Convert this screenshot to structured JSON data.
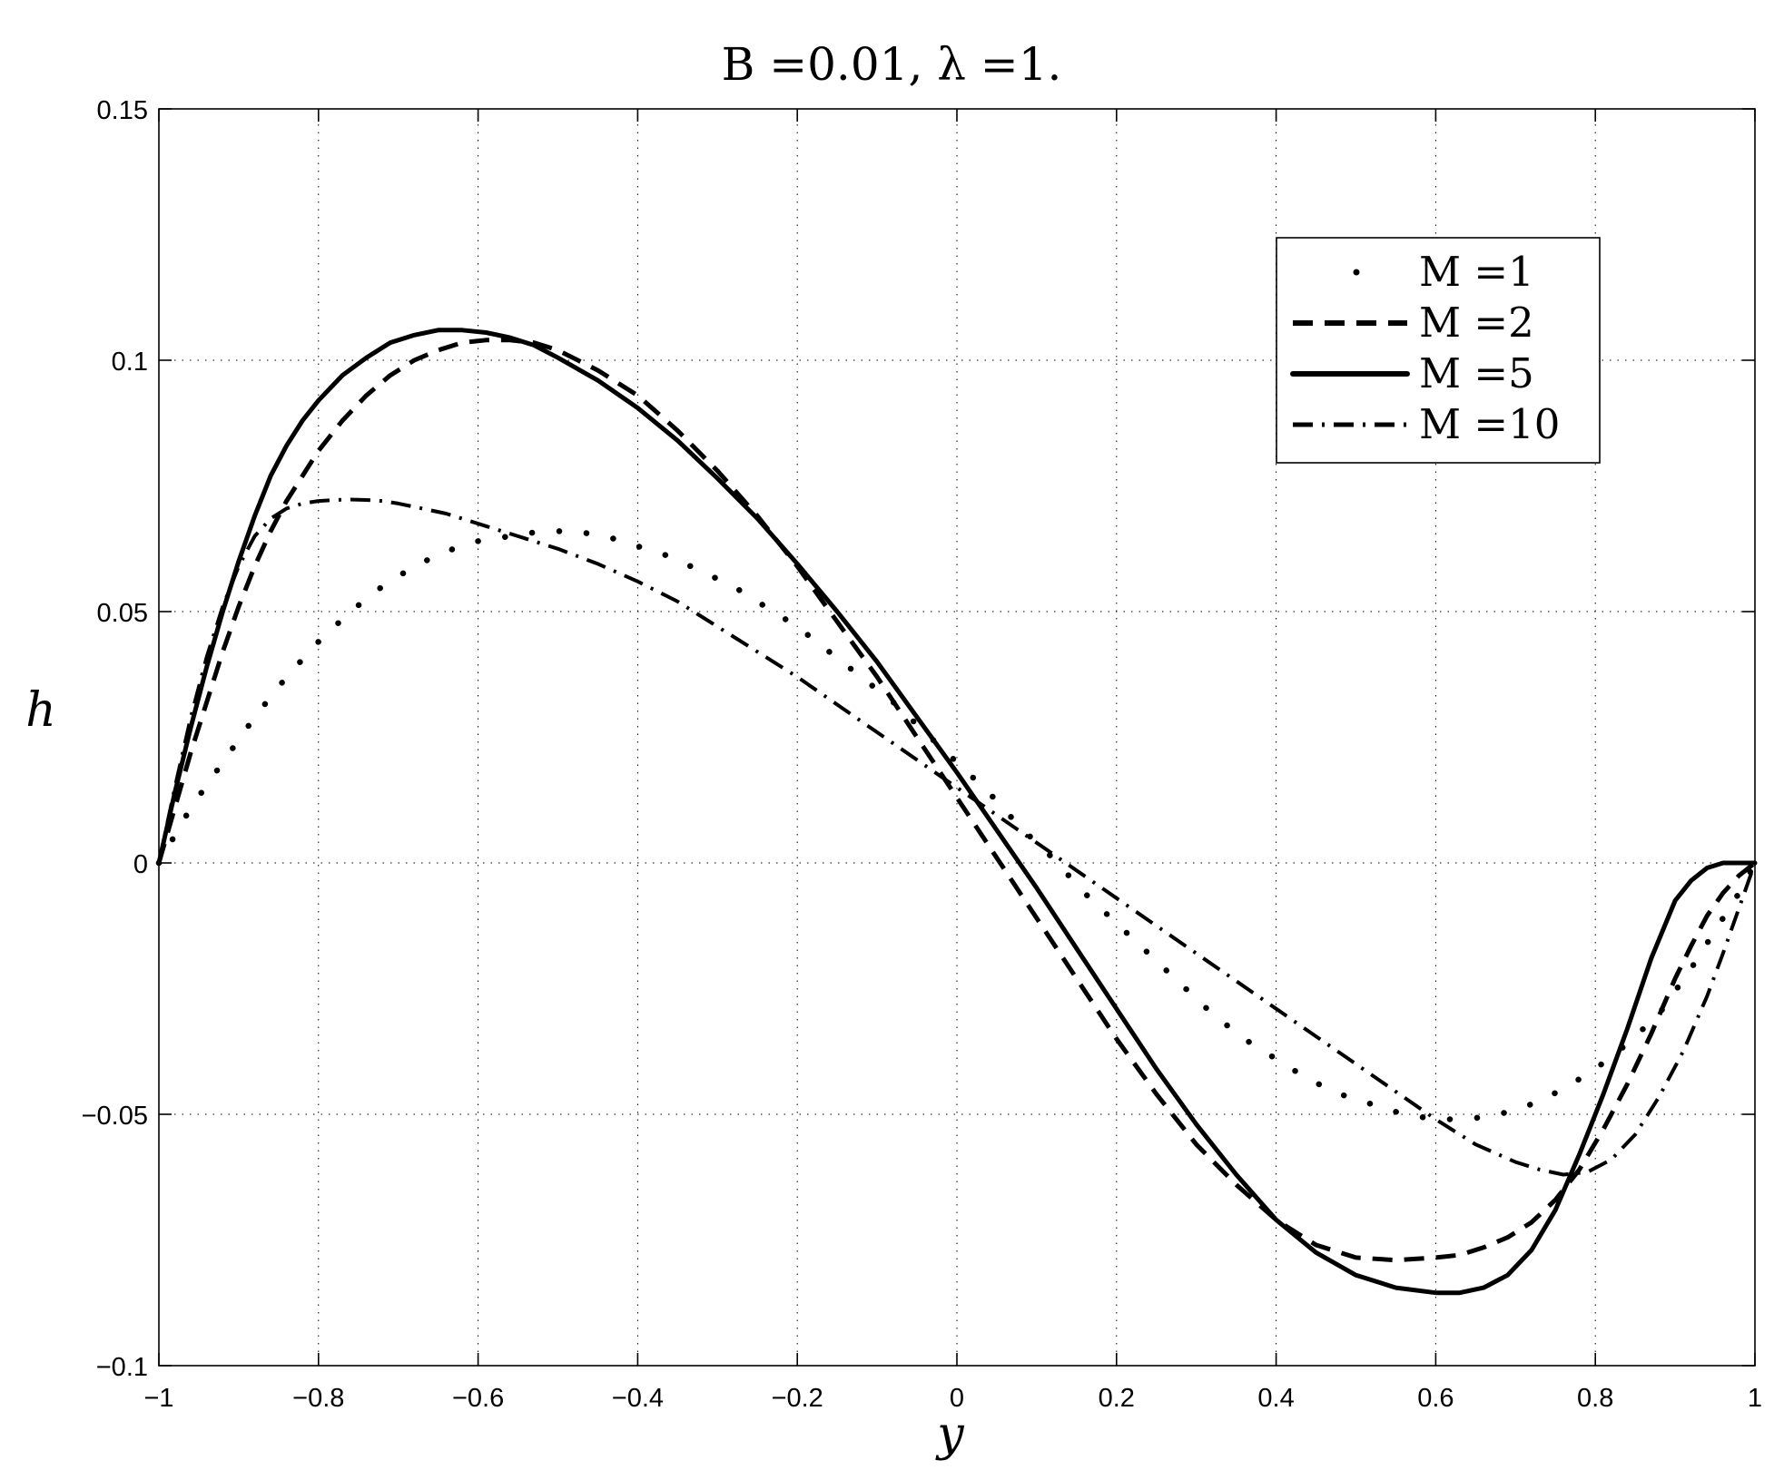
{
  "chart_data": {
    "type": "line",
    "title": "B =0.01, λ =1.",
    "xlabel": "y",
    "ylabel": "h",
    "xlim": [
      -1,
      1
    ],
    "ylim": [
      -0.1,
      0.15
    ],
    "xticks": [
      -1,
      -0.8,
      -0.6,
      -0.4,
      -0.2,
      0,
      0.2,
      0.4,
      0.6,
      0.8,
      1
    ],
    "xtick_labels": [
      "−1",
      "−0.8",
      "−0.6",
      "−0.4",
      "−0.2",
      "0",
      "0.2",
      "0.4",
      "0.6",
      "0.8",
      "1"
    ],
    "yticks": [
      -0.1,
      -0.05,
      0,
      0.05,
      0.1,
      0.15
    ],
    "ytick_labels": [
      "−0.1",
      "−0.05",
      "0",
      "0.05",
      "0.1",
      "0.15"
    ],
    "grid": true,
    "legend_position": "top-right",
    "series": [
      {
        "name": "M =1",
        "style": "dotted",
        "x": [
          -1,
          -0.96,
          -0.92,
          -0.88,
          -0.84,
          -0.8,
          -0.76,
          -0.72,
          -0.68,
          -0.64,
          -0.6,
          -0.56,
          -0.52,
          -0.48,
          -0.44,
          -0.4,
          -0.36,
          -0.32,
          -0.28,
          -0.24,
          -0.2,
          -0.16,
          -0.12,
          -0.08,
          -0.04,
          0,
          0.04,
          0.08,
          0.12,
          0.16,
          0.2,
          0.24,
          0.28,
          0.32,
          0.36,
          0.4,
          0.44,
          0.48,
          0.52,
          0.56,
          0.6,
          0.64,
          0.68,
          0.72,
          0.76,
          0.8,
          0.84,
          0.88,
          0.92,
          0.96,
          0.98,
          1
        ],
        "y": [
          0,
          0.011,
          0.02,
          0.029,
          0.037,
          0.044,
          0.05,
          0.055,
          0.059,
          0.062,
          0.064,
          0.065,
          0.066,
          0.066,
          0.065,
          0.063,
          0.061,
          0.058,
          0.055,
          0.051,
          0.047,
          0.042,
          0.037,
          0.032,
          0.026,
          0.02,
          0.014,
          0.007,
          0.001,
          -0.006,
          -0.012,
          -0.018,
          -0.024,
          -0.03,
          -0.035,
          -0.039,
          -0.043,
          -0.046,
          -0.048,
          -0.05,
          -0.051,
          -0.051,
          -0.05,
          -0.048,
          -0.045,
          -0.041,
          -0.036,
          -0.03,
          -0.021,
          -0.011,
          -0.006,
          0
        ]
      },
      {
        "name": "M =2",
        "style": "dashed",
        "x": [
          -1,
          -0.98,
          -0.96,
          -0.94,
          -0.92,
          -0.9,
          -0.88,
          -0.86,
          -0.84,
          -0.82,
          -0.8,
          -0.77,
          -0.74,
          -0.71,
          -0.68,
          -0.65,
          -0.62,
          -0.59,
          -0.56,
          -0.53,
          -0.5,
          -0.45,
          -0.4,
          -0.35,
          -0.3,
          -0.25,
          -0.2,
          -0.15,
          -0.1,
          -0.05,
          0,
          0.05,
          0.1,
          0.15,
          0.2,
          0.25,
          0.3,
          0.35,
          0.4,
          0.45,
          0.5,
          0.55,
          0.6,
          0.63,
          0.66,
          0.69,
          0.72,
          0.75,
          0.78,
          0.81,
          0.84,
          0.87,
          0.9,
          0.92,
          0.94,
          0.96,
          0.98,
          1
        ],
        "y": [
          0,
          0.011,
          0.022,
          0.032,
          0.042,
          0.051,
          0.059,
          0.066,
          0.072,
          0.077,
          0.082,
          0.088,
          0.093,
          0.097,
          0.1,
          0.102,
          0.1035,
          0.104,
          0.104,
          0.1035,
          0.102,
          0.098,
          0.093,
          0.086,
          0.078,
          0.069,
          0.059,
          0.048,
          0.037,
          0.025,
          0.013,
          0.001,
          -0.011,
          -0.023,
          -0.035,
          -0.046,
          -0.056,
          -0.064,
          -0.071,
          -0.076,
          -0.0785,
          -0.079,
          -0.0785,
          -0.078,
          -0.0765,
          -0.0745,
          -0.0715,
          -0.067,
          -0.061,
          -0.053,
          -0.044,
          -0.034,
          -0.023,
          -0.0165,
          -0.0105,
          -0.006,
          -0.0025,
          0
        ]
      },
      {
        "name": "M =5",
        "style": "solid",
        "x": [
          -1,
          -0.98,
          -0.96,
          -0.94,
          -0.92,
          -0.9,
          -0.88,
          -0.86,
          -0.84,
          -0.82,
          -0.8,
          -0.77,
          -0.74,
          -0.71,
          -0.68,
          -0.65,
          -0.62,
          -0.59,
          -0.56,
          -0.53,
          -0.5,
          -0.45,
          -0.4,
          -0.35,
          -0.3,
          -0.25,
          -0.2,
          -0.15,
          -0.1,
          -0.05,
          0,
          0.05,
          0.1,
          0.15,
          0.2,
          0.25,
          0.3,
          0.35,
          0.4,
          0.45,
          0.5,
          0.55,
          0.6,
          0.63,
          0.66,
          0.69,
          0.72,
          0.75,
          0.78,
          0.81,
          0.84,
          0.87,
          0.9,
          0.92,
          0.94,
          0.96,
          0.98,
          1
        ],
        "y": [
          0,
          0.014,
          0.027,
          0.039,
          0.05,
          0.06,
          0.069,
          0.077,
          0.083,
          0.088,
          0.092,
          0.097,
          0.1005,
          0.1035,
          0.105,
          0.106,
          0.106,
          0.1055,
          0.1045,
          0.103,
          0.1005,
          0.096,
          0.0905,
          0.084,
          0.0765,
          0.0685,
          0.0595,
          0.05,
          0.04,
          0.029,
          0.018,
          0.0065,
          -0.005,
          -0.017,
          -0.029,
          -0.041,
          -0.052,
          -0.062,
          -0.071,
          -0.0775,
          -0.082,
          -0.0845,
          -0.0855,
          -0.0855,
          -0.0845,
          -0.082,
          -0.077,
          -0.069,
          -0.058,
          -0.046,
          -0.033,
          -0.019,
          -0.0075,
          -0.0035,
          -0.001,
          0,
          0,
          0
        ]
      },
      {
        "name": "M =10",
        "style": "dashdot",
        "x": [
          -1,
          -0.98,
          -0.96,
          -0.94,
          -0.92,
          -0.9,
          -0.88,
          -0.86,
          -0.84,
          -0.82,
          -0.8,
          -0.78,
          -0.76,
          -0.74,
          -0.72,
          -0.7,
          -0.67,
          -0.64,
          -0.61,
          -0.58,
          -0.55,
          -0.5,
          -0.45,
          -0.4,
          -0.35,
          -0.3,
          -0.25,
          -0.2,
          -0.15,
          -0.1,
          -0.05,
          0,
          0.05,
          0.1,
          0.15,
          0.2,
          0.25,
          0.3,
          0.35,
          0.4,
          0.45,
          0.5,
          0.55,
          0.6,
          0.65,
          0.7,
          0.73,
          0.76,
          0.79,
          0.82,
          0.85,
          0.88,
          0.91,
          0.94,
          0.96,
          0.98,
          1
        ],
        "y": [
          0,
          0.015,
          0.029,
          0.041,
          0.051,
          0.059,
          0.065,
          0.0685,
          0.0705,
          0.0715,
          0.072,
          0.0722,
          0.0723,
          0.0722,
          0.072,
          0.0715,
          0.0705,
          0.0695,
          0.068,
          0.0665,
          0.065,
          0.0625,
          0.0595,
          0.056,
          0.052,
          0.047,
          0.042,
          0.037,
          0.0315,
          0.026,
          0.0205,
          0.015,
          0.0095,
          0.004,
          -0.0015,
          -0.007,
          -0.0125,
          -0.018,
          -0.0235,
          -0.029,
          -0.0345,
          -0.04,
          -0.0455,
          -0.051,
          -0.056,
          -0.0595,
          -0.061,
          -0.062,
          -0.0615,
          -0.059,
          -0.054,
          -0.0465,
          -0.0375,
          -0.0265,
          -0.018,
          -0.009,
          0
        ]
      }
    ]
  }
}
